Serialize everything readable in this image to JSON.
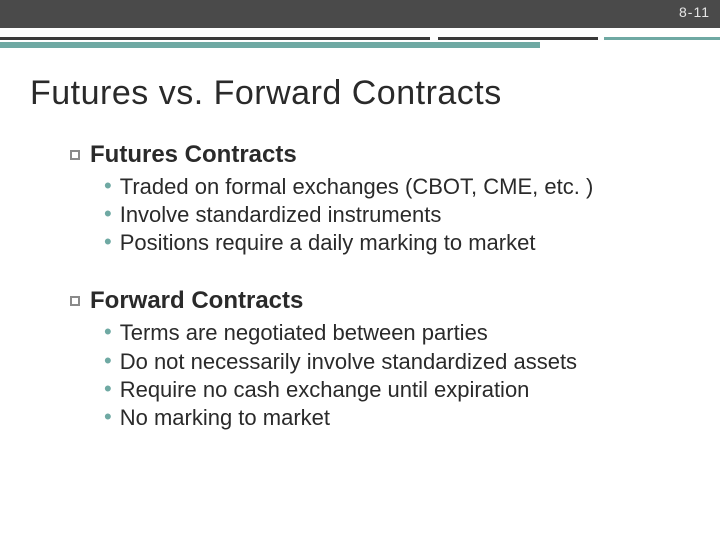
{
  "page_number": "8-11",
  "colors": {
    "topbar": "#4a4a4a",
    "accent": "#6fa9a3",
    "rule_dark": "#3a3a3a",
    "text": "#2a2a2a",
    "pagenum": "#e6e6e6",
    "square_bullet_border": "#8a8a8a",
    "background": "#ffffff"
  },
  "typography": {
    "title_fontsize": 34,
    "section_fontsize": 24,
    "body_fontsize": 22,
    "font_family": "Verdana"
  },
  "title": "Futures vs. Forward Contracts",
  "sections": [
    {
      "heading": "Futures Contracts",
      "bullets": [
        "Traded on formal exchanges (CBOT, CME, etc. )",
        "Involve standardized instruments",
        "Positions require a daily marking to market"
      ]
    },
    {
      "heading": "Forward Contracts",
      "bullets": [
        "Terms are negotiated between parties",
        "Do not necessarily involve standardized assets",
        "Require no cash exchange until expiration",
        "No marking to market"
      ]
    }
  ]
}
